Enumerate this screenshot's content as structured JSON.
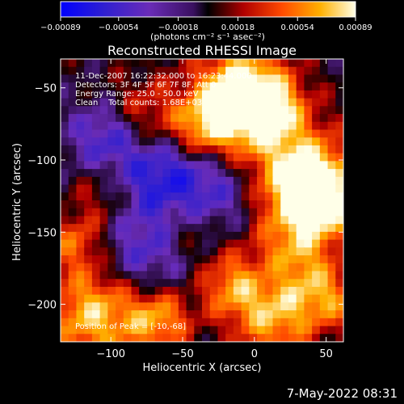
{
  "chart_data": {
    "type": "heatmap",
    "title": "Reconstructed RHESSI Image",
    "xlabel": "Heliocentric X (arcsec)",
    "ylabel": "Heliocentric Y (arcsec)",
    "xlim": [
      -135,
      62
    ],
    "ylim": [
      -226,
      -30
    ],
    "x_ticks": [
      -100,
      -50,
      0,
      50
    ],
    "y_ticks": [
      -50,
      -100,
      -150,
      -200
    ],
    "x_tick_labels": [
      "−100",
      "−50",
      "0",
      "50"
    ],
    "y_tick_labels": [
      "−50",
      "−100",
      "−150",
      "−200"
    ],
    "colorbar": {
      "min": -0.00089,
      "max": 0.00089,
      "ticks": [
        -0.00089,
        -0.00054,
        -0.00018,
        0.00018,
        0.00054,
        0.00089
      ],
      "tick_labels": [
        "−0.00089",
        "−0.00054",
        "−0.00018",
        "0.00018",
        "0.00054",
        "0.00089"
      ],
      "unit_label": "(photons cm⁻² s⁻¹ asec⁻²)"
    },
    "annotations": [
      "11-Dec-2007 16:22:32.000 to 16:23:44.000",
      "Detectors: 3F 4F 5F 6F 7F 8F, Att 0",
      "Energy Range: 25.0 - 50.0 keV",
      "Clean    Total counts: 1.68E+03"
    ],
    "peak_label": "Position of Peak = [-10,-68]",
    "peak_position": [
      -10,
      -68
    ],
    "grid": false,
    "colormap": [
      "#0000ff",
      "#4020c0",
      "#7a2cb0",
      "#000000",
      "#a00000",
      "#ff4000",
      "#ffb000",
      "#ffffe0"
    ]
  },
  "footer": {
    "timestamp": "7-May-2022 08:31"
  }
}
